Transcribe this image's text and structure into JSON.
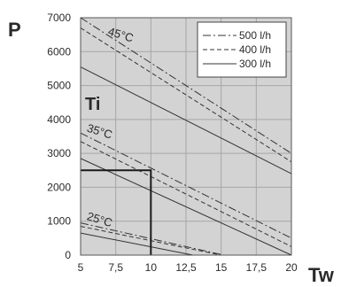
{
  "chart_data": {
    "type": "line",
    "title": "",
    "ylabel": "P",
    "xlabel": "Tw",
    "inner_label": "Ti",
    "x_ticks": [
      5,
      7.5,
      10,
      12.5,
      15,
      17.5,
      20
    ],
    "x_tick_labels": [
      "5",
      "7,5",
      "10",
      "12,5",
      "15",
      "17,5",
      "20"
    ],
    "y_ticks": [
      0,
      1000,
      2000,
      3000,
      4000,
      5000,
      6000,
      7000
    ],
    "y_tick_labels": [
      "0",
      "1000",
      "2000",
      "3000",
      "4000",
      "5000",
      "6000",
      "7000"
    ],
    "xlim": [
      5,
      20
    ],
    "ylim": [
      0,
      7000
    ],
    "grid": true,
    "legend_position": "top-right",
    "legend": [
      {
        "label": "500 l/h",
        "style": "dashdot"
      },
      {
        "label": "400 l/h",
        "style": "dashed"
      },
      {
        "label": "300 l/h",
        "style": "solid"
      }
    ],
    "annotations": [
      {
        "text": "45°C",
        "x": 6.9,
        "y": 6500
      },
      {
        "text": "35°C",
        "x": 5.4,
        "y": 3650
      },
      {
        "text": "25°C",
        "x": 5.4,
        "y": 1050
      }
    ],
    "marker_lines": [
      {
        "x": [
          5,
          10,
          10
        ],
        "y": [
          2500,
          2500,
          0
        ]
      }
    ],
    "series": [
      {
        "name": "500 l/h",
        "group": "45°C",
        "style": "dashdot",
        "x": [
          5,
          20
        ],
        "y": [
          7000,
          3000
        ]
      },
      {
        "name": "400 l/h",
        "group": "45°C",
        "style": "dashed",
        "x": [
          5,
          20
        ],
        "y": [
          6700,
          2750
        ]
      },
      {
        "name": "300 l/h",
        "group": "45°C",
        "style": "solid",
        "x": [
          5,
          20
        ],
        "y": [
          5550,
          2400
        ]
      },
      {
        "name": "500 l/h",
        "group": "35°C",
        "style": "dashdot",
        "x": [
          5,
          20
        ],
        "y": [
          3600,
          500
        ]
      },
      {
        "name": "400 l/h",
        "group": "35°C",
        "style": "dashed",
        "x": [
          5,
          20
        ],
        "y": [
          3350,
          250
        ]
      },
      {
        "name": "300 l/h",
        "group": "35°C",
        "style": "solid",
        "x": [
          5,
          20
        ],
        "y": [
          2850,
          0
        ]
      },
      {
        "name": "500 l/h",
        "group": "25°C",
        "style": "dashdot",
        "x": [
          5,
          15.2
        ],
        "y": [
          950,
          0
        ]
      },
      {
        "name": "400 l/h",
        "group": "25°C",
        "style": "dashed",
        "x": [
          5,
          15
        ],
        "y": [
          850,
          0
        ]
      },
      {
        "name": "300 l/h",
        "group": "25°C",
        "style": "solid",
        "x": [
          5,
          13
        ],
        "y": [
          650,
          0
        ]
      }
    ],
    "colors": {
      "plot_bg": "#d3d3d3",
      "grid": "#a6a6a6",
      "line": "#333333",
      "marker": "#1a1a1a",
      "legend_bg": "#ffffff"
    }
  }
}
